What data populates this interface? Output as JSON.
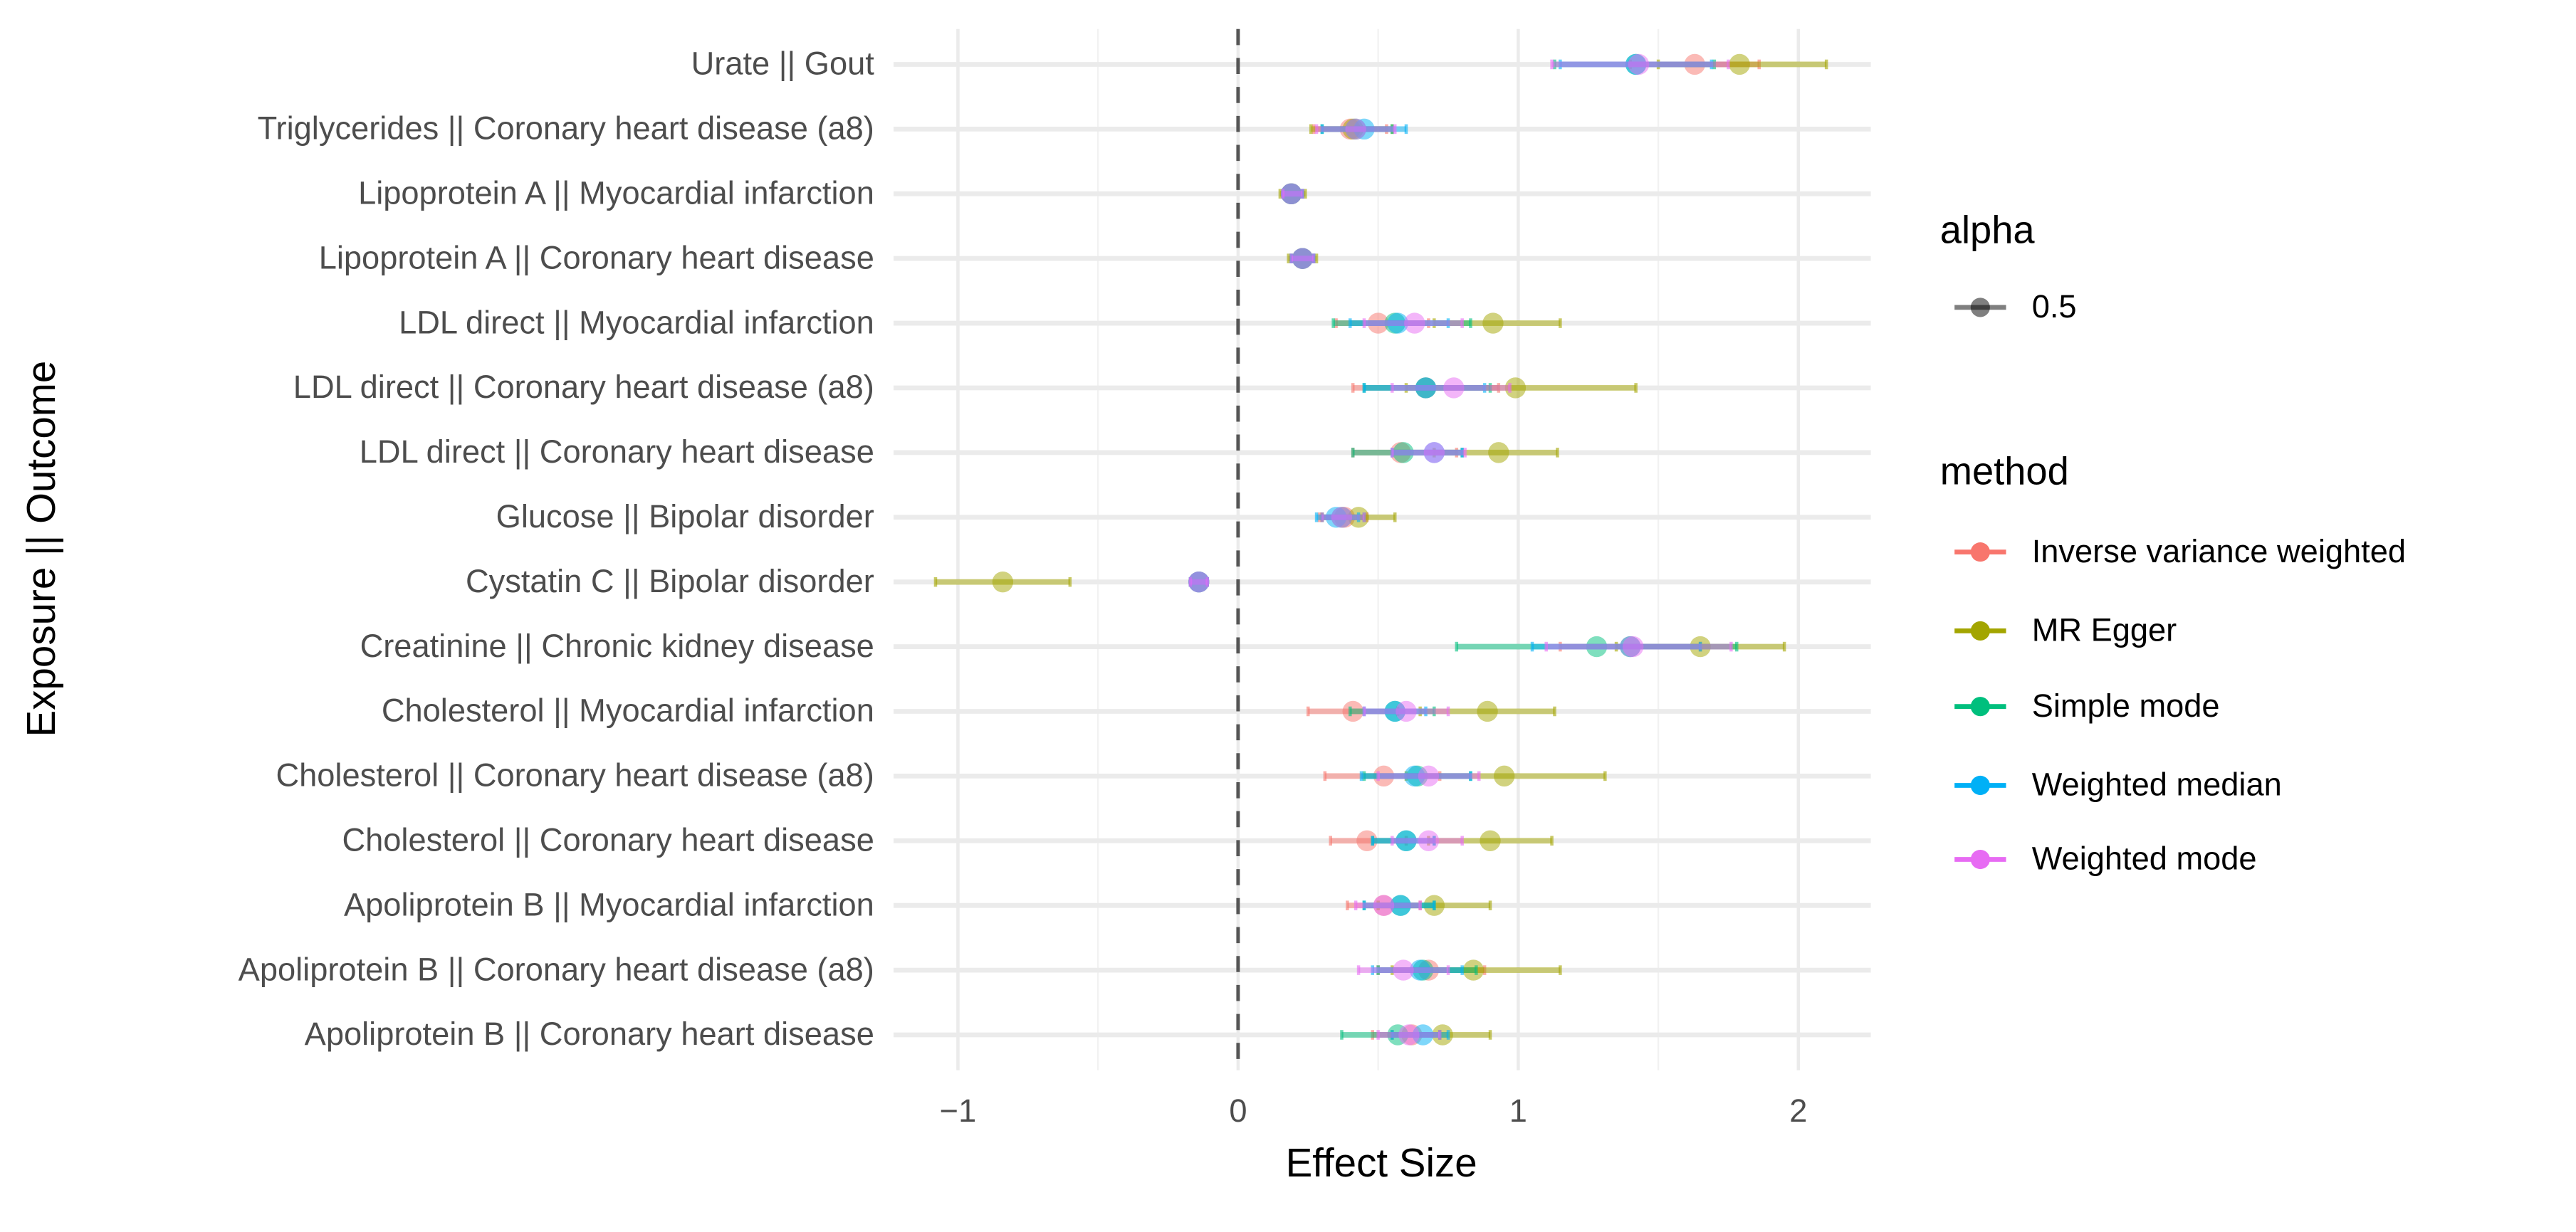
{
  "chart_data": {
    "type": "scatter",
    "subtype": "forest-plot",
    "xlabel": "Effect Size",
    "ylabel": "Exposure || Outcome",
    "xlim": [
      -1.25,
      2.25
    ],
    "xticks": [
      -1,
      0,
      1,
      2
    ],
    "xtick_labels": [
      "−1",
      "0",
      "1",
      "2"
    ],
    "reference_line": 0,
    "grid": true,
    "legend_alpha": {
      "title": "alpha",
      "entries": [
        "0.5"
      ]
    },
    "legend_method": {
      "title": "method",
      "placement": "right"
    },
    "methods": [
      {
        "name": "Inverse variance weighted",
        "color": "#F8766D"
      },
      {
        "name": "MR Egger",
        "color": "#A3A500"
      },
      {
        "name": "Simple mode",
        "color": "#00BF7D"
      },
      {
        "name": "Weighted median",
        "color": "#00B0F6"
      },
      {
        "name": "Weighted mode",
        "color": "#E76BF3"
      }
    ],
    "categories": [
      "Urate || Gout",
      "Triglycerides || Coronary heart disease (a8)",
      "Lipoprotein A || Myocardial infarction",
      "Lipoprotein A || Coronary heart disease",
      "LDL direct || Myocardial infarction",
      "LDL direct || Coronary heart disease (a8)",
      "LDL direct || Coronary heart disease",
      "Glucose || Bipolar disorder",
      "Cystatin C || Bipolar disorder",
      "Creatinine || Chronic kidney disease",
      "Cholesterol || Myocardial infarction",
      "Cholesterol || Coronary heart disease (a8)",
      "Cholesterol || Coronary heart disease",
      "Apoliprotein B || Myocardial infarction",
      "Apoliprotein B || Coronary heart disease (a8)",
      "Apoliprotein B || Coronary heart disease"
    ],
    "estimates": [
      [
        [
          1.63,
          1.4,
          1.86
        ],
        [
          1.79,
          1.5,
          2.1
        ],
        [
          1.42,
          1.13,
          1.7
        ],
        [
          1.42,
          1.15,
          1.69
        ],
        [
          1.43,
          1.12,
          1.75
        ]
      ],
      [
        [
          0.4,
          0.27,
          0.53
        ],
        [
          0.41,
          0.26,
          0.55
        ],
        [
          0.42,
          0.3,
          0.55
        ],
        [
          0.45,
          0.3,
          0.6
        ],
        [
          0.42,
          0.28,
          0.56
        ]
      ],
      [
        [
          0.19,
          0.16,
          0.23
        ],
        [
          0.19,
          0.15,
          0.24
        ],
        [
          0.19,
          0.16,
          0.23
        ],
        [
          0.19,
          0.16,
          0.23
        ],
        [
          0.19,
          0.16,
          0.23
        ]
      ],
      [
        [
          0.23,
          0.19,
          0.27
        ],
        [
          0.23,
          0.18,
          0.28
        ],
        [
          0.23,
          0.19,
          0.27
        ],
        [
          0.23,
          0.19,
          0.27
        ],
        [
          0.23,
          0.19,
          0.27
        ]
      ],
      [
        [
          0.5,
          0.35,
          0.68
        ],
        [
          0.91,
          0.7,
          1.15
        ],
        [
          0.56,
          0.34,
          0.83
        ],
        [
          0.57,
          0.4,
          0.75
        ],
        [
          0.63,
          0.45,
          0.8
        ]
      ],
      [
        [
          0.67,
          0.41,
          0.93
        ],
        [
          0.99,
          0.6,
          1.42
        ],
        [
          0.67,
          0.45,
          0.9
        ],
        [
          0.67,
          0.45,
          0.88
        ],
        [
          0.77,
          0.55,
          0.97
        ]
      ],
      [
        [
          0.58,
          0.41,
          0.78
        ],
        [
          0.93,
          0.7,
          1.14
        ],
        [
          0.59,
          0.41,
          0.8
        ],
        [
          0.7,
          0.55,
          0.8
        ],
        [
          0.7,
          0.55,
          0.81
        ]
      ],
      [
        [
          0.38,
          0.29,
          0.46
        ],
        [
          0.43,
          0.3,
          0.56
        ],
        [
          0.37,
          0.3,
          0.45
        ],
        [
          0.35,
          0.28,
          0.43
        ],
        [
          0.37,
          0.3,
          0.45
        ]
      ],
      [
        [
          -0.14,
          -0.17,
          -0.11
        ],
        [
          -0.84,
          -1.08,
          -0.6
        ],
        [
          -0.14,
          -0.17,
          -0.11
        ],
        [
          -0.14,
          -0.17,
          -0.11
        ],
        [
          -0.14,
          -0.17,
          -0.11
        ]
      ],
      [
        [
          1.4,
          1.15,
          1.65
        ],
        [
          1.65,
          1.35,
          1.95
        ],
        [
          1.28,
          0.78,
          1.78
        ],
        [
          1.4,
          1.05,
          1.65
        ],
        [
          1.41,
          1.1,
          1.76
        ]
      ],
      [
        [
          0.41,
          0.25,
          0.57
        ],
        [
          0.89,
          0.65,
          1.13
        ],
        [
          0.56,
          0.4,
          0.7
        ],
        [
          0.56,
          0.45,
          0.67
        ],
        [
          0.6,
          0.45,
          0.75
        ]
      ],
      [
        [
          0.52,
          0.31,
          0.72
        ],
        [
          0.95,
          0.6,
          1.31
        ],
        [
          0.64,
          0.45,
          0.83
        ],
        [
          0.63,
          0.44,
          0.83
        ],
        [
          0.68,
          0.5,
          0.86
        ]
      ],
      [
        [
          0.46,
          0.33,
          0.6
        ],
        [
          0.9,
          0.68,
          1.12
        ],
        [
          0.6,
          0.48,
          0.7
        ],
        [
          0.6,
          0.48,
          0.7
        ],
        [
          0.68,
          0.55,
          0.8
        ]
      ],
      [
        [
          0.52,
          0.39,
          0.65
        ],
        [
          0.7,
          0.5,
          0.9
        ],
        [
          0.58,
          0.45,
          0.7
        ],
        [
          0.58,
          0.45,
          0.7
        ],
        [
          0.52,
          0.42,
          0.65
        ]
      ],
      [
        [
          0.68,
          0.5,
          0.88
        ],
        [
          0.84,
          0.55,
          1.15
        ],
        [
          0.66,
          0.5,
          0.85
        ],
        [
          0.65,
          0.48,
          0.8
        ],
        [
          0.59,
          0.43,
          0.75
        ]
      ],
      [
        [
          0.62,
          0.48,
          0.72
        ],
        [
          0.73,
          0.55,
          0.9
        ],
        [
          0.57,
          0.37,
          0.72
        ],
        [
          0.66,
          0.55,
          0.75
        ],
        [
          0.61,
          0.5,
          0.72
        ]
      ]
    ],
    "estimate_format": [
      "estimate",
      "ci_lower",
      "ci_upper"
    ]
  }
}
